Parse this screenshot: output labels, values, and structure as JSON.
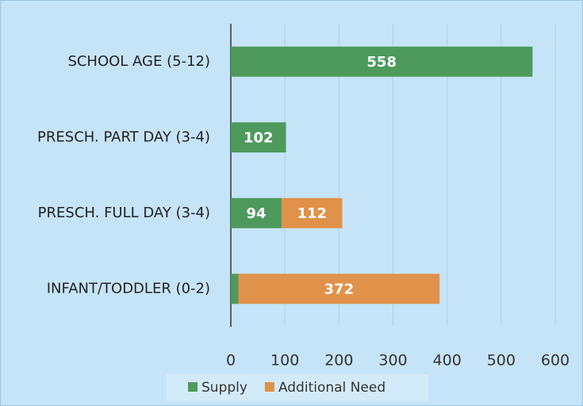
{
  "chart_data": {
    "type": "bar",
    "orientation": "horizontal",
    "stacked": true,
    "categories": [
      "SCHOOL AGE (5-12)",
      "PRESCH. PART DAY (3-4)",
      "PRESCH. FULL DAY (3-4)",
      "INFANT/TODDLER (0-2)"
    ],
    "series": [
      {
        "name": "Supply",
        "color": "#4e9a5c",
        "values": [
          558,
          102,
          94,
          14
        ]
      },
      {
        "name": "Additional Need",
        "color": "#e0914a",
        "values": [
          null,
          null,
          112,
          372
        ]
      }
    ],
    "xlim": [
      0,
      600
    ],
    "xticks": [
      0,
      100,
      200,
      300,
      400,
      500,
      600
    ],
    "grid": true,
    "legend": "bottom"
  }
}
